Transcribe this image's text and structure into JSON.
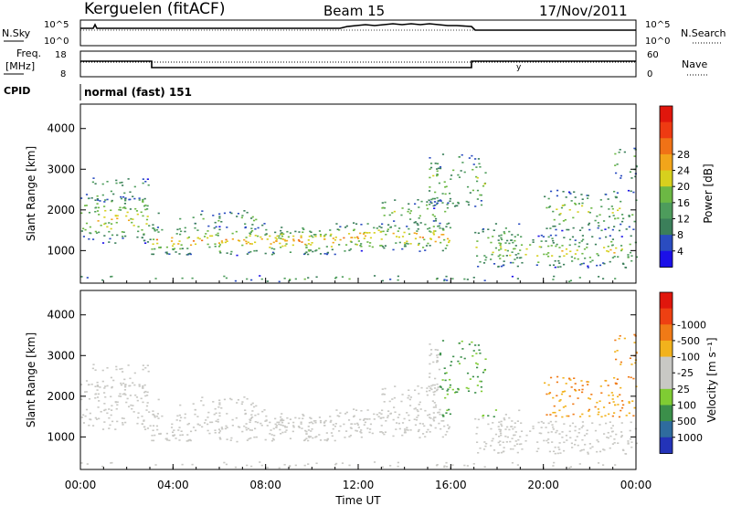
{
  "header": {
    "station": "Kerguelen (fitACF)",
    "beam": "Beam 15",
    "date": "17/Nov/2011"
  },
  "panels": {
    "nsky_label": "N.Sky",
    "nsearch_label": "N.Search",
    "freq_label_1": "Freq.",
    "freq_label_2": "[MHz]",
    "nave_label": "Nave",
    "cpid_label": "CPID",
    "cpid_value": "normal (fast) 151",
    "nsky_ticks": [
      "10^5",
      "10^0"
    ],
    "freq_ticks": [
      "18",
      "8"
    ],
    "nave_ticks": [
      "60",
      "0"
    ]
  },
  "chart_data": [
    {
      "type": "heatmap",
      "name": "power",
      "ylabel": "Slant Range [km]",
      "xlabel": "Time UT",
      "yticks": [
        1000,
        2000,
        3000,
        4000
      ],
      "ylim": [
        200,
        4600
      ],
      "xlim": [
        0,
        24
      ],
      "colorbar": {
        "label": "Power [dB]",
        "ticks": [
          4,
          8,
          12,
          16,
          20,
          24,
          28
        ],
        "colors": [
          "#1b10e8",
          "#2a4cc0",
          "#3b7f5a",
          "#4d9c5c",
          "#6cb844",
          "#d7d01d",
          "#f2a51a",
          "#f07216",
          "#ee3a12",
          "#e0160c"
        ]
      }
    },
    {
      "type": "heatmap",
      "name": "velocity",
      "ylabel": "Slant Range [km]",
      "xlabel": "Time UT",
      "yticks": [
        1000,
        2000,
        3000,
        4000
      ],
      "ylim": [
        200,
        4600
      ],
      "xlim": [
        0,
        24
      ],
      "colorbar": {
        "label": "Velocity [m s⁻¹]",
        "ticks": [
          "1000",
          "500",
          "100",
          "25",
          "-25",
          "-100",
          "-500",
          "-1000"
        ],
        "colors": [
          "#2333b8",
          "#2f6c9e",
          "#3b8f4a",
          "#7fcc33",
          "#c8c8c4",
          "#c8c8c4",
          "#f2b21c",
          "#f07a16",
          "#ee4012",
          "#e0160c"
        ]
      }
    }
  ],
  "time_axis": {
    "label": "Time UT",
    "ticks": [
      "00:00",
      "04:00",
      "08:00",
      "12:00",
      "16:00",
      "20:00",
      "00:00"
    ]
  }
}
